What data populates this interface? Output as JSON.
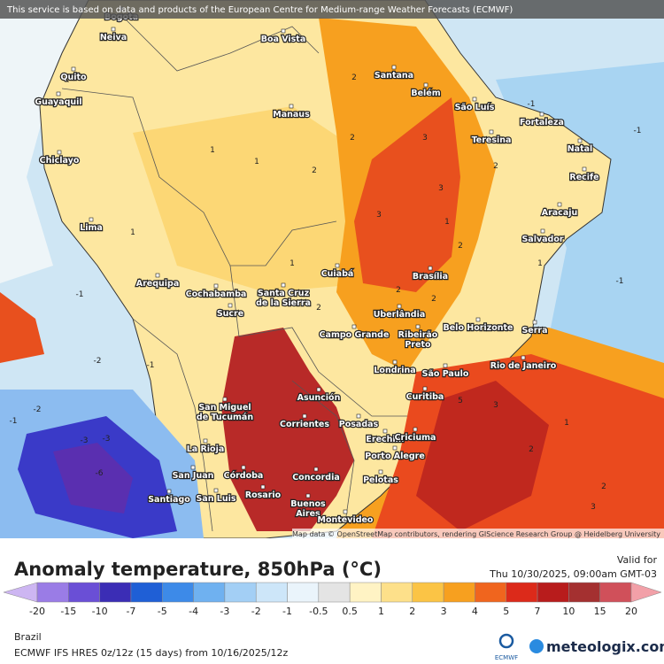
{
  "header": {
    "notice": "This service is based on data and products of the European Centre for Medium-range Weather Forecasts (ECMWF)"
  },
  "map": {
    "attribution": "Map data © OpenStreetMap contributors, rendering GIScience Research Group @ Heidelberg University",
    "cities": [
      [
        "Bogota"
      ],
      [
        "Neiva"
      ],
      [
        "Boa Vista"
      ],
      [
        "Quito"
      ],
      [
        "Guayaquil"
      ],
      [
        "Santana"
      ],
      [
        "Belém"
      ],
      [
        "São Luís"
      ],
      [
        "Fortaleza"
      ],
      [
        "Manaus"
      ],
      [
        "Teresina"
      ],
      [
        "Natal"
      ],
      [
        "Chiclayo"
      ],
      [
        "Recife"
      ],
      [
        "Aracaju"
      ],
      [
        "Lima"
      ],
      [
        "Salvador"
      ],
      [
        "Cuiabá"
      ],
      [
        "Brasília"
      ],
      [
        "Arequipa"
      ],
      [
        "Cochabamba"
      ],
      [
        "Santa Cruz",
        "de la Sierra"
      ],
      [
        "Sucre"
      ],
      [
        "Uberlândia"
      ],
      [
        "Belo Horizonte"
      ],
      [
        "Serra"
      ],
      [
        "Campo Grande"
      ],
      [
        "Ribeirão",
        "Preto"
      ],
      [
        "Rio de Janeiro"
      ],
      [
        "Londrina"
      ],
      [
        "São Paulo"
      ],
      [
        "Asunción"
      ],
      [
        "San Miguel",
        "de Tucumán"
      ],
      [
        "Curitiba"
      ],
      [
        "Corrientes"
      ],
      [
        "Posadas"
      ],
      [
        "Erechim"
      ],
      [
        "Criciuma"
      ],
      [
        "La Rioja"
      ],
      [
        "Porto Alegre"
      ],
      [
        "San Juan"
      ],
      [
        "Córdoba"
      ],
      [
        "Concordia"
      ],
      [
        "Pelotas"
      ],
      [
        "Santiago"
      ],
      [
        "San Luis"
      ],
      [
        "Rosario"
      ],
      [
        "Buenos",
        "Aires"
      ],
      [
        "Montevideo"
      ]
    ],
    "contour_labels": [
      "1",
      "1",
      "2",
      "2",
      "2",
      "3",
      "2",
      "1",
      "-1",
      "-1",
      "1",
      "2",
      "3",
      "2",
      "1",
      "-1",
      "-2",
      "1",
      "3",
      "2",
      "-1",
      "-2",
      "-3",
      "-3",
      "-1",
      "-6",
      "2",
      "3",
      "1",
      "-1",
      "5",
      "2",
      "3",
      "2"
    ]
  },
  "footer": {
    "title": "Anomaly temperature, 850hPa (°C)",
    "valid_label": "Valid for",
    "valid_time": "Thu 10/30/2025, 09:00am GMT-03",
    "region": "Brazil",
    "model": "ECMWF IFS HRES 0z/12z (15 days) from 10/16/2025/12z",
    "ecmwf_logo": "ECMWF",
    "brand": "meteologix.com"
  },
  "legend": {
    "ticks": [
      "-20",
      "-15",
      "-10",
      "-7",
      "-5",
      "-4",
      "-3",
      "-2",
      "-1",
      "-0.5",
      "0.5",
      "1",
      "2",
      "3",
      "4",
      "5",
      "7",
      "10",
      "15",
      "20"
    ],
    "colors": [
      "#cdb6f2",
      "#9a7ce6",
      "#6a4fd6",
      "#3b2db5",
      "#1f5fd6",
      "#3d8ae8",
      "#6fb1f0",
      "#a3cff5",
      "#cde6f9",
      "#eaf4fb",
      "#e4e4e4",
      "#fff3c4",
      "#fde08a",
      "#fbc445",
      "#f7a01f",
      "#f0651e",
      "#dc2a1a",
      "#b81c1c",
      "#a43030",
      "#d0505a",
      "#f2a0a8"
    ]
  }
}
